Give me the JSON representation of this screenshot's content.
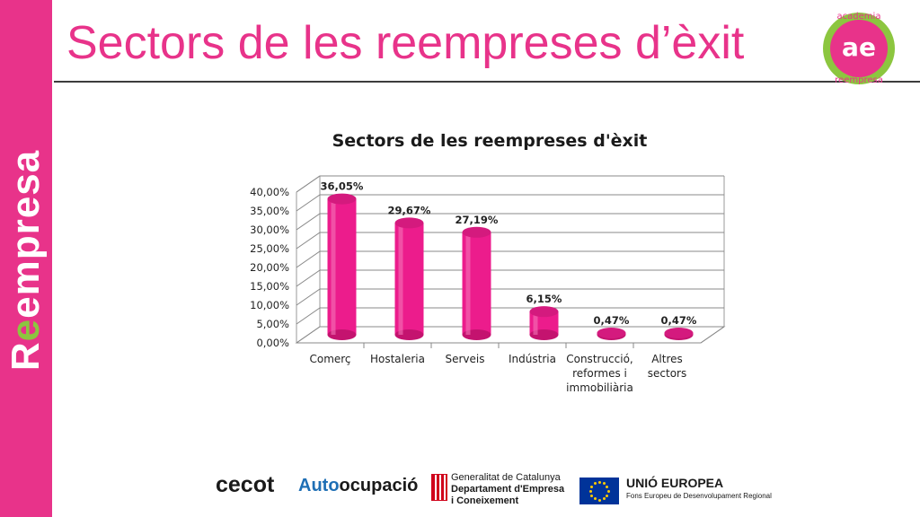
{
  "page": {
    "title": "Sectors de les reempreses d’èxit",
    "brand_prefix": "R",
    "brand_accent": "e",
    "brand_rest": "empresa",
    "logo": {
      "top_text": "academia",
      "mark": "ae",
      "bottom_text": "reempresa"
    }
  },
  "colors": {
    "brand_pink": "#e8338a",
    "brand_green": "#8cc63f",
    "bar": "#ec1c8c"
  },
  "chart_data": {
    "type": "bar",
    "title": "Sectors de les reempreses d'èxit",
    "categories": [
      [
        "Comerç"
      ],
      [
        "Hostaleria"
      ],
      [
        "Serveis"
      ],
      [
        "Indústria"
      ],
      [
        "Construcció,",
        "reformes i",
        "immobiliària"
      ],
      [
        "Altres",
        "sectors"
      ]
    ],
    "values": [
      36.05,
      29.67,
      27.19,
      6.15,
      0.47,
      0.47
    ],
    "value_labels": [
      "36,05%",
      "29,67%",
      "27,19%",
      "6,15%",
      "0,47%",
      "0,47%"
    ],
    "ylim": [
      0,
      40
    ],
    "yticks": [
      "0,00%",
      "5,00%",
      "10,00%",
      "15,00%",
      "20,00%",
      "25,00%",
      "30,00%",
      "35,00%",
      "40,00%"
    ],
    "grid": true,
    "xlabel": "",
    "ylabel": ""
  },
  "footer": {
    "cecot": "cecot",
    "auto_part1": "Auto",
    "auto_part2": "ocupació",
    "gencat_line1": "Generalitat de Catalunya",
    "gencat_line2": "Departament d'Empresa",
    "gencat_line3": "i Coneixement",
    "eu_title": "UNIÓ EUROPEA",
    "eu_sub": "Fons Europeu de Desenvolupament Regional"
  }
}
